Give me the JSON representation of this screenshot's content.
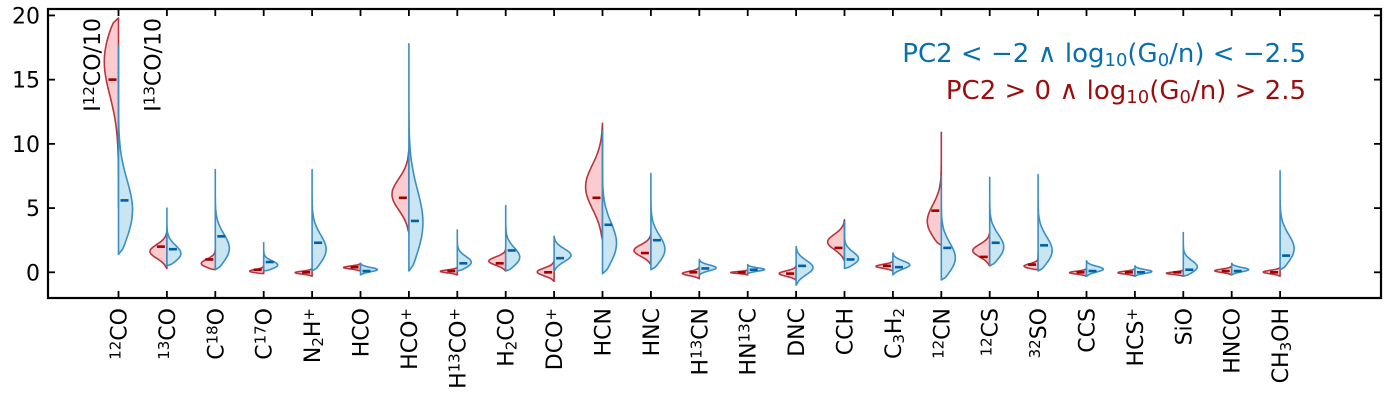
{
  "chart_data": {
    "type": "violin",
    "ylim": [
      -2,
      20.5
    ],
    "yticks": [
      0,
      5,
      10,
      15,
      20
    ],
    "grid": false,
    "legend_placement": "top-right",
    "colors": {
      "series_a_fill": "#f9c3c8",
      "series_a_edge": "#b5363c",
      "series_a_median": "#a00000",
      "series_b_fill": "#bfe0ef",
      "series_b_edge": "#3a8fc4",
      "series_b_median": "#0060a8",
      "series_a_text": "#9b0e0e",
      "series_b_text": "#0a6fad"
    },
    "legend": [
      {
        "series": "b",
        "parts": [
          {
            "t": "PC2 < −2 ∧ log"
          },
          {
            "t": "10",
            "sub": true
          },
          {
            "t": "(G"
          },
          {
            "t": "0",
            "sub": true
          },
          {
            "t": "/n) < −2.5"
          }
        ]
      },
      {
        "series": "a",
        "parts": [
          {
            "t": "PC2 > 0 ∧ log"
          },
          {
            "t": "10",
            "sub": true
          },
          {
            "t": "(G"
          },
          {
            "t": "0",
            "sub": true
          },
          {
            "t": "/n) > 2.5"
          }
        ]
      }
    ],
    "annotations": [
      {
        "category_index": 0,
        "offset": -0.55,
        "parts": [
          {
            "t": "I"
          },
          {
            "t": "12",
            "sup": true
          },
          {
            "t": "CO"
          },
          {
            "t": "/10"
          }
        ]
      },
      {
        "category_index": 1,
        "offset": -0.3,
        "parts": [
          {
            "t": "I"
          },
          {
            "t": "13",
            "sup": true
          },
          {
            "t": "CO"
          },
          {
            "t": "/10"
          }
        ]
      }
    ],
    "categories": [
      {
        "name": "12CO",
        "parts": [
          {
            "t": "12",
            "sup": true
          },
          {
            "t": "CO"
          }
        ]
      },
      {
        "name": "13CO",
        "parts": [
          {
            "t": "13",
            "sup": true
          },
          {
            "t": "CO"
          }
        ]
      },
      {
        "name": "C18O",
        "parts": [
          {
            "t": "C"
          },
          {
            "t": "18",
            "sup": true
          },
          {
            "t": "O"
          }
        ]
      },
      {
        "name": "C17O",
        "parts": [
          {
            "t": "C"
          },
          {
            "t": "17",
            "sup": true
          },
          {
            "t": "O"
          }
        ]
      },
      {
        "name": "N2H+",
        "parts": [
          {
            "t": "N"
          },
          {
            "t": "2",
            "sub": true
          },
          {
            "t": "H"
          },
          {
            "t": "+",
            "sup": true
          }
        ]
      },
      {
        "name": "HCO",
        "parts": [
          {
            "t": "HCO"
          }
        ]
      },
      {
        "name": "HCO+",
        "parts": [
          {
            "t": "HCO"
          },
          {
            "t": "+",
            "sup": true
          }
        ]
      },
      {
        "name": "H13CO+",
        "parts": [
          {
            "t": "H"
          },
          {
            "t": "13",
            "sup": true
          },
          {
            "t": "CO"
          },
          {
            "t": "+",
            "sup": true
          }
        ]
      },
      {
        "name": "H2CO",
        "parts": [
          {
            "t": "H"
          },
          {
            "t": "2",
            "sub": true
          },
          {
            "t": "CO"
          }
        ]
      },
      {
        "name": "DCO+",
        "parts": [
          {
            "t": "DCO"
          },
          {
            "t": "+",
            "sup": true
          }
        ]
      },
      {
        "name": "HCN",
        "parts": [
          {
            "t": "HCN"
          }
        ]
      },
      {
        "name": "HNC",
        "parts": [
          {
            "t": "HNC"
          }
        ]
      },
      {
        "name": "H13CN",
        "parts": [
          {
            "t": "H"
          },
          {
            "t": "13",
            "sup": true
          },
          {
            "t": "CN"
          }
        ]
      },
      {
        "name": "HN13C",
        "parts": [
          {
            "t": "HN"
          },
          {
            "t": "13",
            "sup": true
          },
          {
            "t": "C"
          }
        ]
      },
      {
        "name": "DNC",
        "parts": [
          {
            "t": "DNC"
          }
        ]
      },
      {
        "name": "CCH",
        "parts": [
          {
            "t": "CCH"
          }
        ]
      },
      {
        "name": "C3H2",
        "parts": [
          {
            "t": "C"
          },
          {
            "t": "3",
            "sub": true
          },
          {
            "t": "H"
          },
          {
            "t": "2",
            "sub": true
          }
        ]
      },
      {
        "name": "12CN",
        "parts": [
          {
            "t": "12",
            "sup": true
          },
          {
            "t": "CN"
          }
        ]
      },
      {
        "name": "12CS",
        "parts": [
          {
            "t": "12",
            "sup": true
          },
          {
            "t": "CS"
          }
        ]
      },
      {
        "name": "32SO",
        "parts": [
          {
            "t": "32",
            "sup": true
          },
          {
            "t": "SO"
          }
        ]
      },
      {
        "name": "CCS",
        "parts": [
          {
            "t": "CCS"
          }
        ]
      },
      {
        "name": "HCS+",
        "parts": [
          {
            "t": "HCS"
          },
          {
            "t": "+",
            "sup": true
          }
        ]
      },
      {
        "name": "SiO",
        "parts": [
          {
            "t": "SiO"
          }
        ]
      },
      {
        "name": "HNCO",
        "parts": [
          {
            "t": "HNCO"
          }
        ]
      },
      {
        "name": "CH3OH",
        "parts": [
          {
            "t": "CH"
          },
          {
            "t": "3",
            "sub": true
          },
          {
            "t": "OH"
          }
        ]
      }
    ],
    "series": [
      {
        "key": "a",
        "side": "left",
        "violins": [
          {
            "min": 5.0,
            "max": 19.8,
            "median": 15.0,
            "shape": "top"
          },
          {
            "min": 0.3,
            "max": 3.2,
            "median": 2.0,
            "shape": "mid"
          },
          {
            "min": 0.2,
            "max": 2.5,
            "median": 1.0,
            "shape": "low"
          },
          {
            "min": -0.1,
            "max": 0.8,
            "median": 0.2,
            "shape": "low"
          },
          {
            "min": -0.3,
            "max": 0.3,
            "median": 0.0,
            "shape": "mid"
          },
          {
            "min": 0.1,
            "max": 0.7,
            "median": 0.4,
            "shape": "mid"
          },
          {
            "min": 3.1,
            "max": 9.6,
            "median": 5.8,
            "shape": "mid"
          },
          {
            "min": -0.2,
            "max": 0.4,
            "median": 0.1,
            "shape": "mid"
          },
          {
            "min": 0.1,
            "max": 1.8,
            "median": 0.7,
            "shape": "mid"
          },
          {
            "min": -0.7,
            "max": 0.9,
            "median": 0.0,
            "shape": "mid"
          },
          {
            "min": 2.5,
            "max": 11.6,
            "median": 5.8,
            "shape": "mid"
          },
          {
            "min": 0.6,
            "max": 3.0,
            "median": 1.5,
            "shape": "mid"
          },
          {
            "min": -0.5,
            "max": 0.4,
            "median": 0.0,
            "shape": "mid"
          },
          {
            "min": -0.2,
            "max": 0.2,
            "median": 0.0,
            "shape": "mid"
          },
          {
            "min": -0.6,
            "max": 0.5,
            "median": -0.1,
            "shape": "mid"
          },
          {
            "min": 0.9,
            "max": 4.1,
            "median": 1.9,
            "shape": "mid"
          },
          {
            "min": 0.1,
            "max": 0.9,
            "median": 0.5,
            "shape": "mid"
          },
          {
            "min": 2.1,
            "max": 10.9,
            "median": 4.8,
            "shape": "low"
          },
          {
            "min": 0.5,
            "max": 3.1,
            "median": 1.2,
            "shape": "mid"
          },
          {
            "min": 0.2,
            "max": 1.5,
            "median": 0.6,
            "shape": "low"
          },
          {
            "min": -0.3,
            "max": 0.3,
            "median": 0.0,
            "shape": "mid"
          },
          {
            "min": -0.3,
            "max": 0.3,
            "median": 0.0,
            "shape": "mid"
          },
          {
            "min": -0.3,
            "max": 0.2,
            "median": 0.0,
            "shape": "mid"
          },
          {
            "min": -0.2,
            "max": 0.5,
            "median": 0.1,
            "shape": "mid"
          },
          {
            "min": -0.3,
            "max": 0.4,
            "median": 0.0,
            "shape": "mid"
          }
        ]
      },
      {
        "key": "b",
        "side": "right",
        "violins": [
          {
            "min": 1.4,
            "max": 17.6,
            "median": 5.6,
            "shape": "low"
          },
          {
            "min": 0.5,
            "max": 5.0,
            "median": 1.8,
            "shape": "low"
          },
          {
            "min": 0.2,
            "max": 8.0,
            "median": 2.8,
            "shape": "low"
          },
          {
            "min": 0.1,
            "max": 2.3,
            "median": 0.8,
            "shape": "low"
          },
          {
            "min": 0.1,
            "max": 8.0,
            "median": 2.3,
            "shape": "low"
          },
          {
            "min": -0.2,
            "max": 0.7,
            "median": 0.1,
            "shape": "mid"
          },
          {
            "min": 0.1,
            "max": 17.8,
            "median": 4.0,
            "shape": "low"
          },
          {
            "min": 0.1,
            "max": 3.3,
            "median": 0.7,
            "shape": "low"
          },
          {
            "min": 0.1,
            "max": 5.2,
            "median": 1.7,
            "shape": "low"
          },
          {
            "min": 0.1,
            "max": 2.8,
            "median": 1.1,
            "shape": "mid"
          },
          {
            "min": -0.1,
            "max": 11.0,
            "median": 3.7,
            "shape": "low"
          },
          {
            "min": 0.2,
            "max": 7.7,
            "median": 2.5,
            "shape": "low"
          },
          {
            "min": -0.2,
            "max": 1.0,
            "median": 0.3,
            "shape": "mid"
          },
          {
            "min": -0.1,
            "max": 0.6,
            "median": 0.2,
            "shape": "mid"
          },
          {
            "min": -1.0,
            "max": 2.0,
            "median": 0.5,
            "shape": "mid"
          },
          {
            "min": 0.3,
            "max": 3.9,
            "median": 1.0,
            "shape": "low"
          },
          {
            "min": -0.2,
            "max": 1.5,
            "median": 0.4,
            "shape": "mid"
          },
          {
            "min": -0.6,
            "max": 7.5,
            "median": 1.9,
            "shape": "low"
          },
          {
            "min": 0.5,
            "max": 7.4,
            "median": 2.3,
            "shape": "low"
          },
          {
            "min": 0.1,
            "max": 7.6,
            "median": 2.1,
            "shape": "low"
          },
          {
            "min": -0.3,
            "max": 0.9,
            "median": 0.1,
            "shape": "mid"
          },
          {
            "min": -0.3,
            "max": 0.5,
            "median": 0.0,
            "shape": "mid"
          },
          {
            "min": -0.3,
            "max": 3.1,
            "median": 0.2,
            "shape": "low"
          },
          {
            "min": -0.2,
            "max": 0.7,
            "median": 0.1,
            "shape": "mid"
          },
          {
            "min": 0.2,
            "max": 7.9,
            "median": 1.3,
            "shape": "low"
          }
        ]
      }
    ]
  }
}
